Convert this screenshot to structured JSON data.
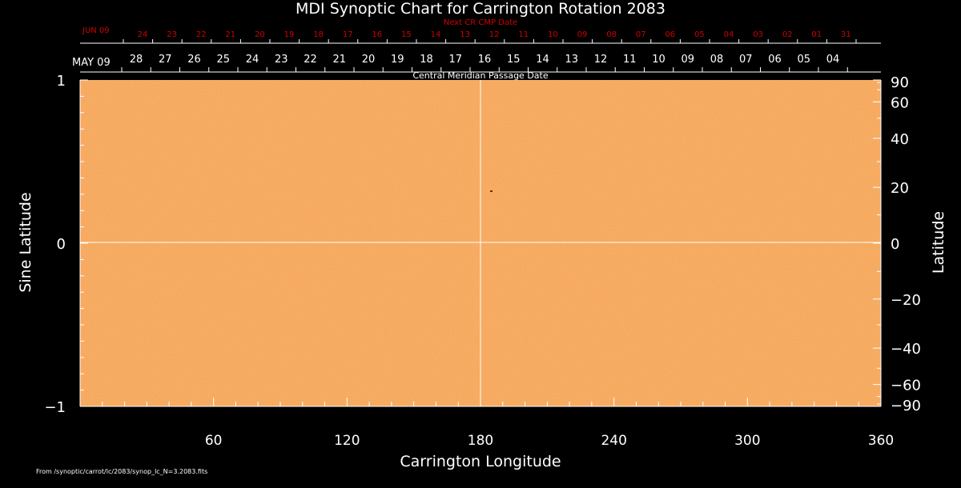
{
  "chart_data": {
    "type": "heatmap",
    "title": "MDI Synoptic Chart for Carrington Rotation 2083",
    "xlabel": "Carrington Longitude",
    "ylabel_left": "Sine Latitude",
    "ylabel_right": "Latitude",
    "xlim": [
      0,
      360
    ],
    "ylim": [
      -1,
      1
    ],
    "x_ticks": [
      "60",
      "120",
      "180",
      "240",
      "300",
      "360"
    ],
    "y_ticks_left": [
      "1",
      "0",
      "−1"
    ],
    "y_ticks_right": [
      "90",
      "60",
      "40",
      "20",
      "0",
      "−20",
      "−40",
      "−60",
      "−90"
    ],
    "y_ticks_right_values": [
      90,
      60,
      40,
      20,
      0,
      -20,
      -40,
      -60,
      -90
    ],
    "cmp_label": "Central Meridian Passage Date",
    "cmp_start": "MAY 09",
    "cmp_dates": [
      "28",
      "27",
      "26",
      "25",
      "24",
      "23",
      "22",
      "21",
      "20",
      "19",
      "18",
      "17",
      "16",
      "15",
      "14",
      "13",
      "12",
      "11",
      "10",
      "09",
      "08",
      "07",
      "06",
      "05",
      "04"
    ],
    "next_label": "Next CR CMP Date",
    "next_start": "JUN 09",
    "next_dates": [
      "24",
      "23",
      "22",
      "21",
      "20",
      "19",
      "18",
      "17",
      "16",
      "15",
      "14",
      "13",
      "12",
      "11",
      "10",
      "09",
      "08",
      "07",
      "06",
      "05",
      "04",
      "03",
      "02",
      "01",
      "31"
    ],
    "footer": "From /synoptic/carrot/lc/2083/synop_lc_N=3.2083.fits",
    "colors": {
      "background": "#000000",
      "map": "#f5a55a",
      "map_dark": "#e8843a",
      "map_light": "#fbc888",
      "next_dates": "#d00000"
    }
  }
}
